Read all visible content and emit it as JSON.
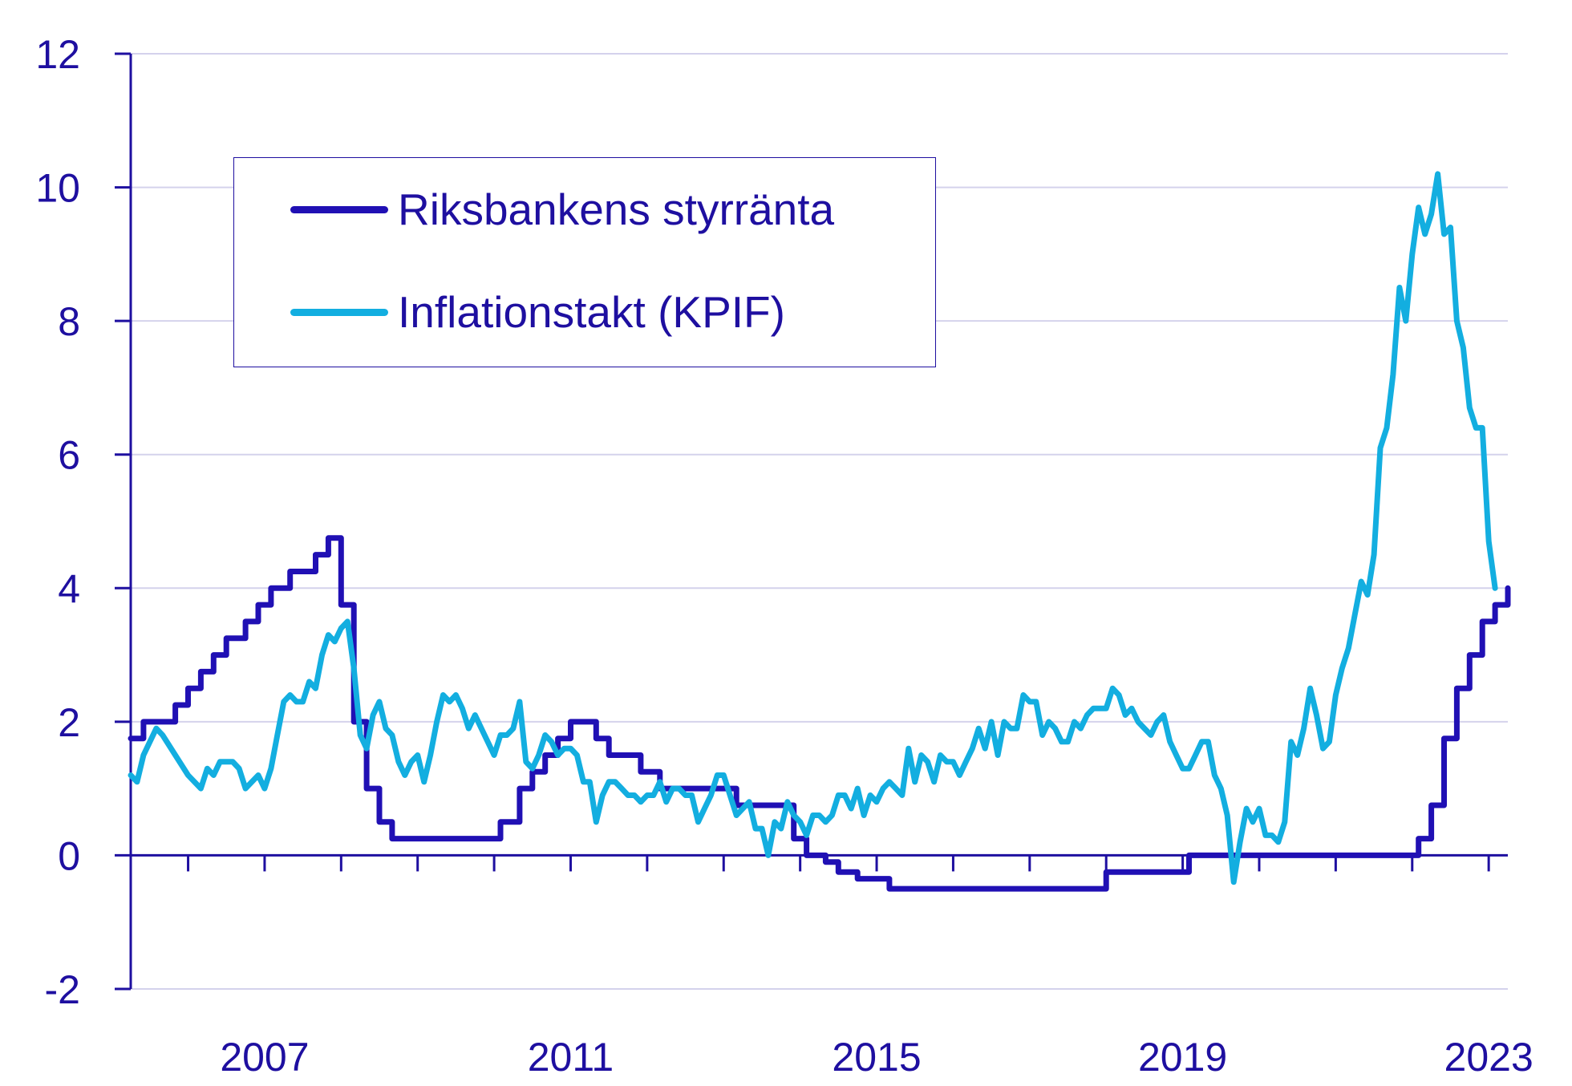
{
  "colors": {
    "axis": "#1e0fa0",
    "grid": "#d4d2ec",
    "text": "#1e0fa0"
  },
  "chart_data": {
    "type": "line",
    "title": "",
    "xlabel": "",
    "ylabel": "",
    "ylim": [
      -2,
      12
    ],
    "xlim": [
      2005.25,
      2023.25
    ],
    "y_ticks": [
      "-2",
      "0",
      "2",
      "4",
      "6",
      "8",
      "10",
      "12"
    ],
    "x_tick_labels": [
      "2007",
      "2011",
      "2015",
      "2019",
      "2023"
    ],
    "grid": true,
    "legend_position": "upper-left",
    "series": [
      {
        "name": "Riksbankens styrränta",
        "color": "#2010b4",
        "style": "step",
        "points": [
          [
            "2005-04",
            1.75
          ],
          [
            "2005-06",
            2.0
          ],
          [
            "2005-09",
            2.0
          ],
          [
            "2005-11",
            2.25
          ],
          [
            "2006-01",
            2.5
          ],
          [
            "2006-03",
            2.75
          ],
          [
            "2006-05",
            3.0
          ],
          [
            "2006-07",
            3.25
          ],
          [
            "2006-10",
            3.5
          ],
          [
            "2006-12",
            3.75
          ],
          [
            "2007-02",
            4.0
          ],
          [
            "2007-05",
            4.25
          ],
          [
            "2007-09",
            4.5
          ],
          [
            "2007-11",
            4.75
          ],
          [
            "2008-01",
            3.75
          ],
          [
            "2008-03",
            2.0
          ],
          [
            "2008-05",
            1.0
          ],
          [
            "2008-07",
            0.5
          ],
          [
            "2008-09",
            0.25
          ],
          [
            "2009-12",
            0.25
          ],
          [
            "2010-02",
            0.5
          ],
          [
            "2010-05",
            1.0
          ],
          [
            "2010-07",
            1.25
          ],
          [
            "2010-09",
            1.5
          ],
          [
            "2010-11",
            1.75
          ],
          [
            "2011-01",
            2.0
          ],
          [
            "2011-05",
            1.75
          ],
          [
            "2011-07",
            1.5
          ],
          [
            "2011-12",
            1.25
          ],
          [
            "2012-03",
            1.0
          ],
          [
            "2013-03",
            0.75
          ],
          [
            "2013-12",
            0.25
          ],
          [
            "2014-02",
            0.0
          ],
          [
            "2014-05",
            -0.1
          ],
          [
            "2014-07",
            -0.25
          ],
          [
            "2014-10",
            -0.35
          ],
          [
            "2015-03",
            -0.5
          ],
          [
            "2017-12",
            -0.5
          ],
          [
            "2018-01",
            -0.25
          ],
          [
            "2019-01",
            -0.25
          ],
          [
            "2019-02",
            0.0
          ],
          [
            "2021-12",
            0.0
          ],
          [
            "2022-02",
            0.25
          ],
          [
            "2022-04",
            0.75
          ],
          [
            "2022-06",
            1.75
          ],
          [
            "2022-08",
            2.5
          ],
          [
            "2022-10",
            3.0
          ],
          [
            "2022-12",
            3.5
          ],
          [
            "2023-02",
            3.75
          ],
          [
            "2023-04",
            4.0
          ]
        ]
      },
      {
        "name": "Inflationstakt (KPIF)",
        "color": "#13aee0",
        "style": "line",
        "points": [
          [
            "2005-04",
            1.2
          ],
          [
            "2005-05",
            1.1
          ],
          [
            "2005-06",
            1.5
          ],
          [
            "2005-08",
            1.9
          ],
          [
            "2005-09",
            1.8
          ],
          [
            "2005-11",
            1.5
          ],
          [
            "2006-01",
            1.2
          ],
          [
            "2006-03",
            1.0
          ],
          [
            "2006-04",
            1.3
          ],
          [
            "2006-05",
            1.2
          ],
          [
            "2006-06",
            1.4
          ],
          [
            "2006-08",
            1.4
          ],
          [
            "2006-09",
            1.3
          ],
          [
            "2006-10",
            1.0
          ],
          [
            "2006-12",
            1.2
          ],
          [
            "2007-01",
            1.0
          ],
          [
            "2007-02",
            1.3
          ],
          [
            "2007-03",
            1.8
          ],
          [
            "2007-04",
            2.3
          ],
          [
            "2007-05",
            2.4
          ],
          [
            "2007-06",
            2.3
          ],
          [
            "2007-07",
            2.3
          ],
          [
            "2007-08",
            2.6
          ],
          [
            "2007-09",
            2.5
          ],
          [
            "2007-10",
            3.0
          ],
          [
            "2007-11",
            3.3
          ],
          [
            "2007-12",
            3.2
          ],
          [
            "2008-01",
            3.4
          ],
          [
            "2008-02",
            3.5
          ],
          [
            "2008-03",
            2.8
          ],
          [
            "2008-04",
            1.8
          ],
          [
            "2008-05",
            1.6
          ],
          [
            "2008-06",
            2.1
          ],
          [
            "2008-07",
            2.3
          ],
          [
            "2008-08",
            1.9
          ],
          [
            "2008-09",
            1.8
          ],
          [
            "2008-10",
            1.4
          ],
          [
            "2008-11",
            1.2
          ],
          [
            "2008-12",
            1.4
          ],
          [
            "2009-01",
            1.5
          ],
          [
            "2009-02",
            1.1
          ],
          [
            "2009-03",
            1.5
          ],
          [
            "2009-04",
            2.0
          ],
          [
            "2009-05",
            2.4
          ],
          [
            "2009-06",
            2.3
          ],
          [
            "2009-07",
            2.4
          ],
          [
            "2009-08",
            2.2
          ],
          [
            "2009-09",
            1.9
          ],
          [
            "2009-10",
            2.1
          ],
          [
            "2009-11",
            1.9
          ],
          [
            "2009-12",
            1.7
          ],
          [
            "2010-01",
            1.5
          ],
          [
            "2010-02",
            1.8
          ],
          [
            "2010-03",
            1.8
          ],
          [
            "2010-04",
            1.9
          ],
          [
            "2010-05",
            2.3
          ],
          [
            "2010-06",
            1.4
          ],
          [
            "2010-07",
            1.3
          ],
          [
            "2010-08",
            1.5
          ],
          [
            "2010-09",
            1.8
          ],
          [
            "2010-10",
            1.7
          ],
          [
            "2010-11",
            1.5
          ],
          [
            "2010-12",
            1.6
          ],
          [
            "2011-01",
            1.6
          ],
          [
            "2011-02",
            1.5
          ],
          [
            "2011-03",
            1.1
          ],
          [
            "2011-04",
            1.1
          ],
          [
            "2011-05",
            0.5
          ],
          [
            "2011-06",
            0.9
          ],
          [
            "2011-07",
            1.1
          ],
          [
            "2011-08",
            1.1
          ],
          [
            "2011-09",
            1.0
          ],
          [
            "2011-10",
            0.9
          ],
          [
            "2011-11",
            0.9
          ],
          [
            "2011-12",
            0.8
          ],
          [
            "2012-01",
            0.9
          ],
          [
            "2012-02",
            0.9
          ],
          [
            "2012-03",
            1.1
          ],
          [
            "2012-04",
            0.8
          ],
          [
            "2012-05",
            1.0
          ],
          [
            "2012-06",
            1.0
          ],
          [
            "2012-07",
            0.9
          ],
          [
            "2012-08",
            0.9
          ],
          [
            "2012-09",
            0.5
          ],
          [
            "2012-10",
            0.7
          ],
          [
            "2012-11",
            0.9
          ],
          [
            "2012-12",
            1.2
          ],
          [
            "2013-01",
            1.2
          ],
          [
            "2013-02",
            0.9
          ],
          [
            "2013-03",
            0.6
          ],
          [
            "2013-04",
            0.7
          ],
          [
            "2013-05",
            0.8
          ],
          [
            "2013-06",
            0.4
          ],
          [
            "2013-07",
            0.4
          ],
          [
            "2013-08",
            0.0
          ],
          [
            "2013-09",
            0.5
          ],
          [
            "2013-10",
            0.4
          ],
          [
            "2013-11",
            0.8
          ],
          [
            "2013-12",
            0.6
          ],
          [
            "2014-01",
            0.5
          ],
          [
            "2014-02",
            0.3
          ],
          [
            "2014-03",
            0.6
          ],
          [
            "2014-04",
            0.6
          ],
          [
            "2014-05",
            0.5
          ],
          [
            "2014-06",
            0.6
          ],
          [
            "2014-07",
            0.9
          ],
          [
            "2014-08",
            0.9
          ],
          [
            "2014-09",
            0.7
          ],
          [
            "2014-10",
            1.0
          ],
          [
            "2014-11",
            0.6
          ],
          [
            "2014-12",
            0.9
          ],
          [
            "2015-01",
            0.8
          ],
          [
            "2015-02",
            1.0
          ],
          [
            "2015-03",
            1.1
          ],
          [
            "2015-04",
            1.0
          ],
          [
            "2015-05",
            0.9
          ],
          [
            "2015-06",
            1.6
          ],
          [
            "2015-07",
            1.1
          ],
          [
            "2015-08",
            1.5
          ],
          [
            "2015-09",
            1.4
          ],
          [
            "2015-10",
            1.1
          ],
          [
            "2015-11",
            1.5
          ],
          [
            "2015-12",
            1.4
          ],
          [
            "2016-01",
            1.4
          ],
          [
            "2016-02",
            1.2
          ],
          [
            "2016-03",
            1.4
          ],
          [
            "2016-04",
            1.6
          ],
          [
            "2016-05",
            1.9
          ],
          [
            "2016-06",
            1.6
          ],
          [
            "2016-07",
            2.0
          ],
          [
            "2016-08",
            1.5
          ],
          [
            "2016-09",
            2.0
          ],
          [
            "2016-10",
            1.9
          ],
          [
            "2016-11",
            1.9
          ],
          [
            "2016-12",
            2.4
          ],
          [
            "2017-01",
            2.3
          ],
          [
            "2017-02",
            2.3
          ],
          [
            "2017-03",
            1.8
          ],
          [
            "2017-04",
            2.0
          ],
          [
            "2017-05",
            1.9
          ],
          [
            "2017-06",
            1.7
          ],
          [
            "2017-07",
            1.7
          ],
          [
            "2017-08",
            2.0
          ],
          [
            "2017-09",
            1.9
          ],
          [
            "2017-10",
            2.1
          ],
          [
            "2017-11",
            2.2
          ],
          [
            "2017-12",
            2.2
          ],
          [
            "2018-01",
            2.2
          ],
          [
            "2018-02",
            2.5
          ],
          [
            "2018-03",
            2.4
          ],
          [
            "2018-04",
            2.1
          ],
          [
            "2018-05",
            2.2
          ],
          [
            "2018-06",
            2.0
          ],
          [
            "2018-07",
            1.9
          ],
          [
            "2018-08",
            1.8
          ],
          [
            "2018-09",
            2.0
          ],
          [
            "2018-10",
            2.1
          ],
          [
            "2018-11",
            1.7
          ],
          [
            "2018-12",
            1.5
          ],
          [
            "2019-01",
            1.3
          ],
          [
            "2019-02",
            1.3
          ],
          [
            "2019-03",
            1.5
          ],
          [
            "2019-04",
            1.7
          ],
          [
            "2019-05",
            1.7
          ],
          [
            "2019-06",
            1.2
          ],
          [
            "2019-07",
            1.0
          ],
          [
            "2019-08",
            0.6
          ],
          [
            "2019-09",
            -0.4
          ],
          [
            "2019-10",
            0.2
          ],
          [
            "2019-11",
            0.7
          ],
          [
            "2019-12",
            0.5
          ],
          [
            "2020-01",
            0.7
          ],
          [
            "2020-02",
            0.3
          ],
          [
            "2020-03",
            0.3
          ],
          [
            "2020-04",
            0.2
          ],
          [
            "2020-05",
            0.5
          ],
          [
            "2020-06",
            1.7
          ],
          [
            "2020-07",
            1.5
          ],
          [
            "2020-08",
            1.9
          ],
          [
            "2020-09",
            2.5
          ],
          [
            "2020-10",
            2.1
          ],
          [
            "2020-11",
            1.6
          ],
          [
            "2020-12",
            1.7
          ],
          [
            "2021-01",
            2.4
          ],
          [
            "2021-02",
            2.8
          ],
          [
            "2021-03",
            3.1
          ],
          [
            "2021-04",
            3.6
          ],
          [
            "2021-05",
            4.1
          ],
          [
            "2021-06",
            3.9
          ],
          [
            "2021-07",
            4.5
          ],
          [
            "2021-08",
            6.1
          ],
          [
            "2021-09",
            6.4
          ],
          [
            "2021-10",
            7.2
          ],
          [
            "2021-11",
            8.5
          ],
          [
            "2021-12",
            8.0
          ],
          [
            "2022-01",
            9.0
          ],
          [
            "2022-02",
            9.7
          ],
          [
            "2022-03",
            9.3
          ],
          [
            "2022-04",
            9.6
          ],
          [
            "2022-05",
            10.2
          ],
          [
            "2022-06",
            9.3
          ],
          [
            "2022-07",
            9.4
          ],
          [
            "2022-08",
            8.0
          ],
          [
            "2022-09",
            7.6
          ],
          [
            "2022-10",
            6.7
          ],
          [
            "2022-11",
            6.4
          ],
          [
            "2022-12",
            6.4
          ],
          [
            "2023-01",
            4.7
          ],
          [
            "2023-02",
            4.0
          ]
        ]
      }
    ]
  }
}
